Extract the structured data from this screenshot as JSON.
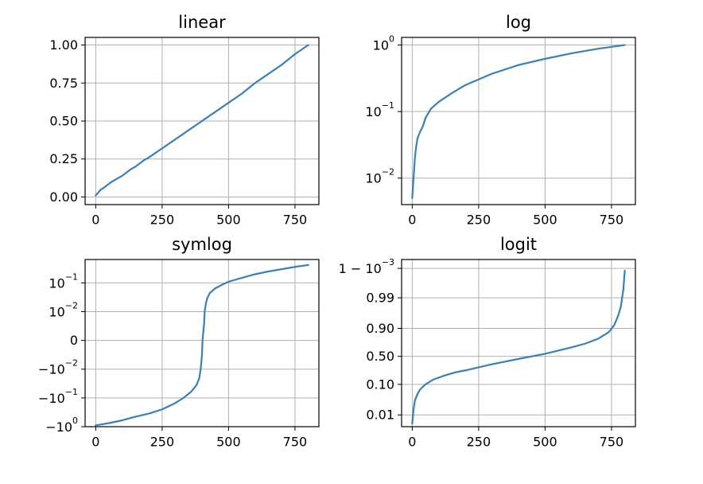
{
  "figure": {
    "line_color": "#3a7fb8",
    "grid_color": "#b0b0b0"
  },
  "chart_data": [
    {
      "type": "line",
      "title": "linear",
      "yscale": "linear",
      "grid": true,
      "xlim": [
        -40,
        840
      ],
      "ylim": [
        -0.05,
        1.05
      ],
      "xticks": [
        {
          "v": 0,
          "label": "0"
        },
        {
          "v": 250,
          "label": "250"
        },
        {
          "v": 500,
          "label": "500"
        },
        {
          "v": 750,
          "label": "750"
        }
      ],
      "yticks": [
        {
          "v": 0,
          "label": "0.00"
        },
        {
          "v": 0.25,
          "label": "0.25"
        },
        {
          "v": 0.5,
          "label": "0.50"
        },
        {
          "v": 0.75,
          "label": "0.75"
        },
        {
          "v": 1.0,
          "label": "1.00"
        }
      ],
      "x": [
        0,
        10,
        20,
        30,
        45,
        60,
        80,
        100,
        130,
        150,
        180,
        200,
        250,
        300,
        350,
        400,
        450,
        500,
        550,
        600,
        650,
        700,
        750,
        800
      ],
      "y": [
        0.01,
        0.03,
        0.05,
        0.06,
        0.08,
        0.1,
        0.12,
        0.14,
        0.18,
        0.2,
        0.24,
        0.26,
        0.32,
        0.38,
        0.44,
        0.5,
        0.56,
        0.62,
        0.68,
        0.75,
        0.81,
        0.87,
        0.94,
        1.0
      ]
    },
    {
      "type": "line",
      "title": "log",
      "yscale": "log",
      "grid": true,
      "xlim": [
        -40,
        840
      ],
      "ylim": [
        0.004,
        1.3
      ],
      "xticks": [
        {
          "v": 0,
          "label": "0"
        },
        {
          "v": 250,
          "label": "250"
        },
        {
          "v": 500,
          "label": "500"
        },
        {
          "v": 750,
          "label": "750"
        }
      ],
      "yticks": [
        {
          "v": 0.01,
          "base": "10",
          "exp": "−2"
        },
        {
          "v": 0.1,
          "base": "10",
          "exp": "−1"
        },
        {
          "v": 1,
          "base": "10",
          "exp": "0"
        }
      ],
      "x": [
        0,
        5,
        10,
        15,
        20,
        30,
        40,
        50,
        70,
        100,
        150,
        200,
        300,
        400,
        500,
        600,
        700,
        800
      ],
      "y": [
        0.005,
        0.01,
        0.02,
        0.03,
        0.04,
        0.05,
        0.06,
        0.08,
        0.11,
        0.14,
        0.19,
        0.25,
        0.37,
        0.5,
        0.62,
        0.75,
        0.88,
        1.0
      ]
    },
    {
      "type": "line",
      "title": "symlog",
      "yscale": "symlog",
      "linthresh": 0.01,
      "grid": true,
      "xlim": [
        -40,
        840
      ],
      "ylim": [
        -1.0,
        0.65
      ],
      "xticks": [
        {
          "v": 0,
          "label": "0"
        },
        {
          "v": 250,
          "label": "250"
        },
        {
          "v": 500,
          "label": "500"
        },
        {
          "v": 750,
          "label": "750"
        }
      ],
      "yticks": [
        {
          "v": -1,
          "base": "−10",
          "exp": "0"
        },
        {
          "v": -0.1,
          "base": "−10",
          "exp": "−1"
        },
        {
          "v": -0.01,
          "base": "−10",
          "exp": "−2"
        },
        {
          "v": 0,
          "label": "0"
        },
        {
          "v": 0.01,
          "base": "10",
          "exp": "−2"
        },
        {
          "v": 0.1,
          "base": "10",
          "exp": "−1"
        }
      ],
      "x": [
        0,
        50,
        100,
        150,
        200,
        250,
        300,
        330,
        360,
        380,
        390,
        395,
        400,
        402,
        405,
        408,
        410,
        415,
        420,
        430,
        450,
        480,
        500,
        550,
        600,
        650,
        700,
        750,
        800
      ],
      "y": [
        -0.9,
        -0.75,
        -0.6,
        -0.45,
        -0.35,
        -0.25,
        -0.15,
        -0.1,
        -0.06,
        -0.035,
        -0.02,
        -0.01,
        -0.005,
        0,
        0.003,
        0.006,
        0.01,
        0.02,
        0.03,
        0.045,
        0.065,
        0.09,
        0.11,
        0.15,
        0.2,
        0.25,
        0.3,
        0.36,
        0.42
      ]
    },
    {
      "type": "line",
      "title": "logit",
      "yscale": "logit",
      "grid": true,
      "xlim": [
        -40,
        840
      ],
      "ylim": [
        0.004,
        0.9995
      ],
      "xticks": [
        {
          "v": 0,
          "label": "0"
        },
        {
          "v": 250,
          "label": "250"
        },
        {
          "v": 500,
          "label": "500"
        },
        {
          "v": 750,
          "label": "750"
        }
      ],
      "yticks": [
        {
          "v": 0.01,
          "label": "0.01"
        },
        {
          "v": 0.1,
          "label": "0.10"
        },
        {
          "v": 0.5,
          "label": "0.50"
        },
        {
          "v": 0.9,
          "label": "0.90"
        },
        {
          "v": 0.99,
          "label": "0.99"
        },
        {
          "v": 0.999,
          "base": "1 − 10",
          "exp": "−3"
        }
      ],
      "x": [
        0,
        5,
        10,
        20,
        30,
        50,
        80,
        120,
        160,
        200,
        300,
        400,
        500,
        600,
        650,
        700,
        740,
        760,
        775,
        785,
        790,
        795,
        798,
        800
      ],
      "y": [
        0.005,
        0.015,
        0.03,
        0.05,
        0.07,
        0.1,
        0.14,
        0.18,
        0.22,
        0.25,
        0.35,
        0.45,
        0.55,
        0.67,
        0.73,
        0.8,
        0.87,
        0.92,
        0.96,
        0.98,
        0.99,
        0.995,
        0.998,
        0.9988
      ]
    }
  ]
}
